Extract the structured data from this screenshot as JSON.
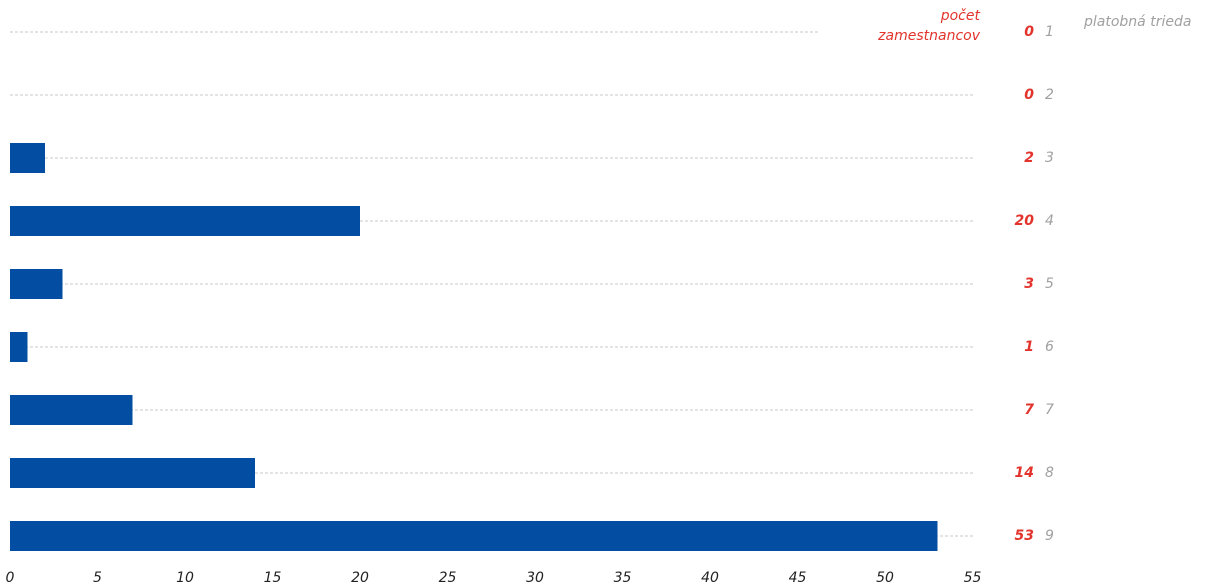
{
  "chart_data": {
    "type": "bar",
    "orientation": "horizontal",
    "value_label_title": "počet zamestnancov",
    "category_label_title": "platobná trieda",
    "categories": [
      "1",
      "2",
      "3",
      "4",
      "5",
      "6",
      "7",
      "8",
      "9"
    ],
    "values": [
      0,
      0,
      2,
      20,
      3,
      1,
      7,
      14,
      53
    ],
    "color": "#034ea2",
    "xlim": [
      0,
      55
    ],
    "xticks": [
      0,
      5,
      10,
      15,
      20,
      25,
      30,
      35,
      40,
      45,
      50,
      55
    ]
  }
}
